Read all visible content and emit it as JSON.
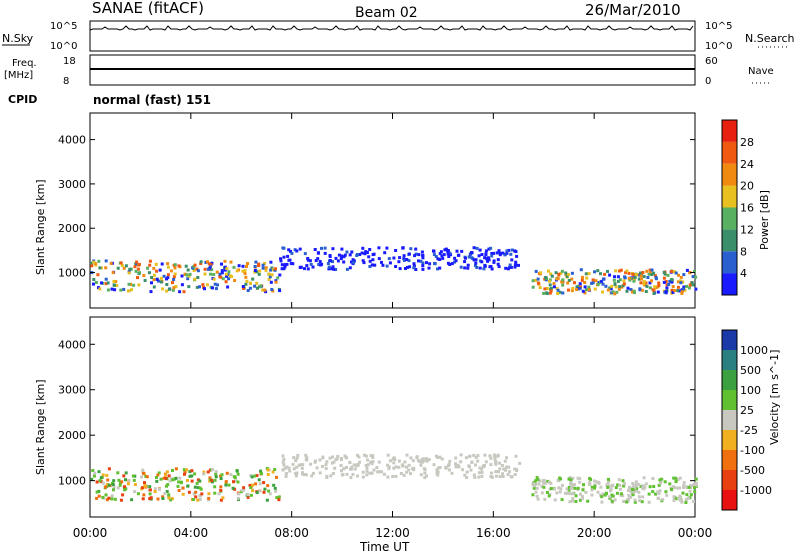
{
  "header": {
    "station": "SANAE (fitACF)",
    "beam": "Beam 02",
    "date": "26/Mar/2010"
  },
  "strips": {
    "nsky": {
      "label": "N.Sky",
      "ticks": [
        "10^5",
        "10^0"
      ],
      "right_ticks": [
        "10^5",
        "10^0"
      ],
      "right_label": "N.Search"
    },
    "freq": {
      "label_top": "Freq.",
      "label_bottom": "[MHz]",
      "ticks": [
        "18",
        "8"
      ],
      "right_ticks": [
        "60",
        "0"
      ],
      "right_label": "Nave"
    },
    "cpid": {
      "label": "CPID",
      "value": "normal (fast) 151"
    }
  },
  "chart_data": [
    {
      "type": "heatmap",
      "name_of_quantity": "Power",
      "ylabel": "Slant Range [km]",
      "colorbar_label": "Power [dB]",
      "ylim": [
        200,
        4600
      ],
      "yticks": [
        "1000",
        "2000",
        "3000",
        "4000"
      ],
      "colorbar_ticks": [
        "4",
        "8",
        "12",
        "16",
        "20",
        "24",
        "28"
      ],
      "colorbar_colors": [
        "#1a1aff",
        "#2a5fd0",
        "#3a8f6a",
        "#58b060",
        "#e8c020",
        "#f08a10",
        "#f05a10",
        "#e82010"
      ],
      "regions": [
        {
          "t": [
            0.0,
            7.5
          ],
          "r": [
            600,
            1300
          ],
          "level": "high"
        },
        {
          "t": [
            7.5,
            17.0
          ],
          "r": [
            1100,
            1600
          ],
          "level": "low"
        },
        {
          "t": [
            17.5,
            24.0
          ],
          "r": [
            550,
            1100
          ],
          "level": "high"
        }
      ]
    },
    {
      "type": "heatmap",
      "name_of_quantity": "Velocity",
      "ylabel": "Slant Range [km]",
      "xlabel": "Time UT",
      "colorbar_label": "Velocity [m s^-1]",
      "ylim": [
        200,
        4600
      ],
      "yticks": [
        "1000",
        "2000",
        "3000",
        "4000"
      ],
      "colorbar_ticks": [
        "1000",
        "500",
        "100",
        "25",
        "-25",
        "-100",
        "-500",
        "-1000"
      ],
      "colorbar_colors": [
        "#1a3aa8",
        "#2a8080",
        "#3aa040",
        "#60c030",
        "#c8c8c0",
        "#f0b020",
        "#f07010",
        "#e84010",
        "#e81010"
      ],
      "regions": [
        {
          "t": [
            0.0,
            7.5
          ],
          "r": [
            600,
            1300
          ],
          "level": "mixed"
        },
        {
          "t": [
            7.5,
            17.0
          ],
          "r": [
            1100,
            1600
          ],
          "level": "gray"
        },
        {
          "t": [
            17.5,
            24.0
          ],
          "r": [
            550,
            1100
          ],
          "level": "gray-green"
        }
      ]
    }
  ],
  "xaxis": {
    "label": "Time UT",
    "ticks": [
      "00:00",
      "04:00",
      "08:00",
      "12:00",
      "16:00",
      "20:00",
      "00:00"
    ],
    "range_hours": [
      0,
      24
    ]
  }
}
